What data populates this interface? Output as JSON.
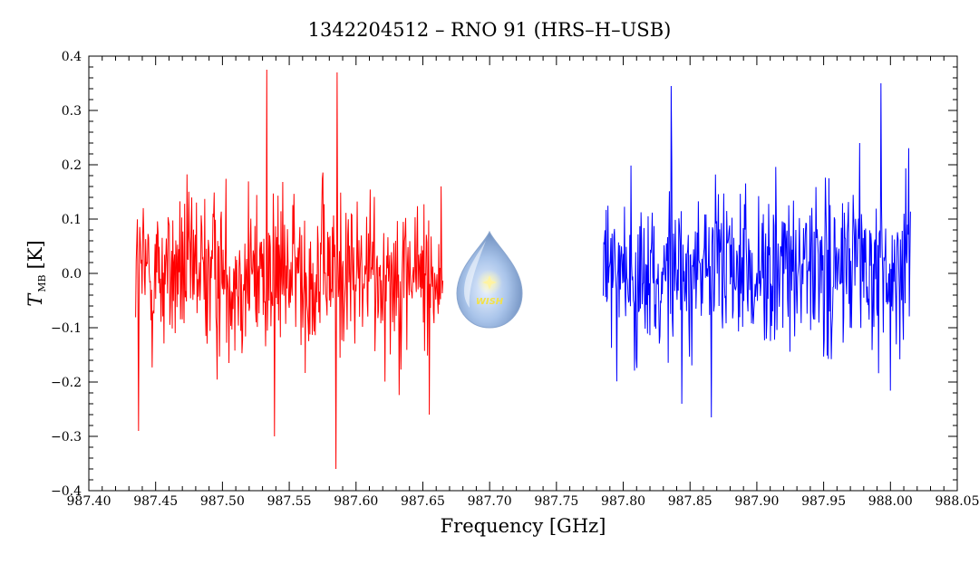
{
  "chart_data": {
    "type": "line",
    "title": "1342204512 – RNO 91 (HRS–H–USB)",
    "xlabel": "Frequency [GHz]",
    "ylabel": "T",
    "ylabel_sub": "MB",
    "ylabel_unit": "[K]",
    "xlim": [
      987.4,
      988.05
    ],
    "ylim": [
      -0.4,
      0.4
    ],
    "xticks": [
      "987.40",
      "987.45",
      "987.50",
      "987.55",
      "987.60",
      "987.65",
      "987.70",
      "987.75",
      "987.80",
      "987.85",
      "987.90",
      "987.95",
      "988.00",
      "988.05"
    ],
    "yticks": [
      "0.4",
      "0.3",
      "0.2",
      "0.1",
      "0.0",
      "−0.1",
      "−0.2",
      "−0.3",
      "−0.4"
    ],
    "grid": false,
    "series": [
      {
        "color": "#ff0000",
        "x_range": [
          987.435,
          987.665
        ],
        "noise_rms": 0.1,
        "extremes": [
          {
            "x": 987.437,
            "y": -0.29
          },
          {
            "x": 987.533,
            "y": 0.375
          },
          {
            "x": 987.539,
            "y": -0.3
          },
          {
            "x": 987.586,
            "y": 0.37
          },
          {
            "x": 987.585,
            "y": -0.36
          },
          {
            "x": 987.655,
            "y": -0.26
          }
        ]
      },
      {
        "color": "#0000ff",
        "x_range": [
          987.785,
          988.015
        ],
        "noise_rms": 0.1,
        "extremes": [
          {
            "x": 987.836,
            "y": 0.345
          },
          {
            "x": 987.866,
            "y": -0.265
          },
          {
            "x": 987.993,
            "y": 0.35
          },
          {
            "x": 987.844,
            "y": -0.24
          }
        ]
      }
    ],
    "logo": {
      "label": "WISH",
      "icon": "water-drop-logo"
    }
  }
}
